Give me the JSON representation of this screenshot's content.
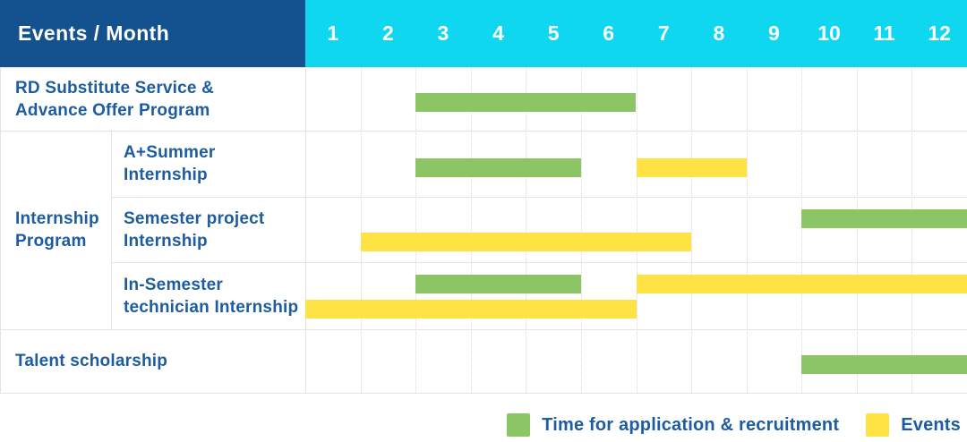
{
  "header": {
    "title": "Events / Month"
  },
  "months": [
    "1",
    "2",
    "3",
    "4",
    "5",
    "6",
    "7",
    "8",
    "9",
    "10",
    "11",
    "12"
  ],
  "group_cell": {
    "label": "Internship Program",
    "label_lines": [
      "Internship",
      "Program"
    ]
  },
  "legend": {
    "items": [
      {
        "label": "Time for application & recruitment",
        "color": "#8BC566"
      },
      {
        "label": "Events",
        "color": "#FFE345"
      }
    ]
  },
  "colors": {
    "header_bg": "#14518F",
    "months_bg": "#0FD7EF",
    "header_text": "#FFFFFF",
    "text_blue": "#1D5C9E",
    "green": "#8BC566",
    "yellow": "#FFE345",
    "grid_line": "#E3E3E3",
    "dotted_line": "#D8D8D8",
    "page_bg": "#FFFFFF"
  },
  "chart_data": {
    "type": "gantt",
    "title": "Events / Month",
    "x_axis": {
      "label": "Month",
      "ticks": [
        1,
        2,
        3,
        4,
        5,
        6,
        7,
        8,
        9,
        10,
        11,
        12
      ],
      "range": [
        1,
        12
      ]
    },
    "series": [
      {
        "name": "Time for application & recruitment",
        "key": "green",
        "color": "#8BC566"
      },
      {
        "name": "Events",
        "key": "yellow",
        "color": "#FFE345"
      }
    ],
    "rows": [
      {
        "group": null,
        "label": "RD Substitute Service & Advance Offer Program",
        "label_lines": [
          "RD Substitute Service &",
          "Advance Offer Program"
        ],
        "bars": [
          {
            "type": "green",
            "start_month": 3,
            "end_month": 6,
            "level": "single"
          }
        ]
      },
      {
        "group": "Internship Program",
        "label": "A+Summer Internship",
        "label_lines": [
          "A+Summer",
          "Internship"
        ],
        "bars": [
          {
            "type": "green",
            "start_month": 3,
            "end_month": 5,
            "level": "single"
          },
          {
            "type": "yellow",
            "start_month": 7,
            "end_month": 8,
            "level": "single"
          }
        ]
      },
      {
        "group": "Internship Program",
        "label": "Semester project Internship",
        "label_lines": [
          "Semester project",
          "Internship"
        ],
        "bars": [
          {
            "type": "green",
            "start_month": 10,
            "end_month": 12,
            "level": "top"
          },
          {
            "type": "yellow",
            "start_month": 2,
            "end_month": 7,
            "level": "bottom"
          }
        ]
      },
      {
        "group": "Internship Program",
        "label": "In-Semester technician Internship",
        "label_lines": [
          "In-Semester",
          "technician Internship"
        ],
        "bars": [
          {
            "type": "green",
            "start_month": 3,
            "end_month": 5,
            "level": "top"
          },
          {
            "type": "yellow",
            "start_month": 7,
            "end_month": 12,
            "level": "top"
          },
          {
            "type": "yellow",
            "start_month": 1,
            "end_month": 6,
            "level": "bottom"
          }
        ]
      },
      {
        "group": null,
        "label": "Talent scholarship",
        "label_lines": [
          "Talent scholarship"
        ],
        "bars": [
          {
            "type": "green",
            "start_month": 10,
            "end_month": 12,
            "level": "single"
          }
        ]
      }
    ]
  }
}
